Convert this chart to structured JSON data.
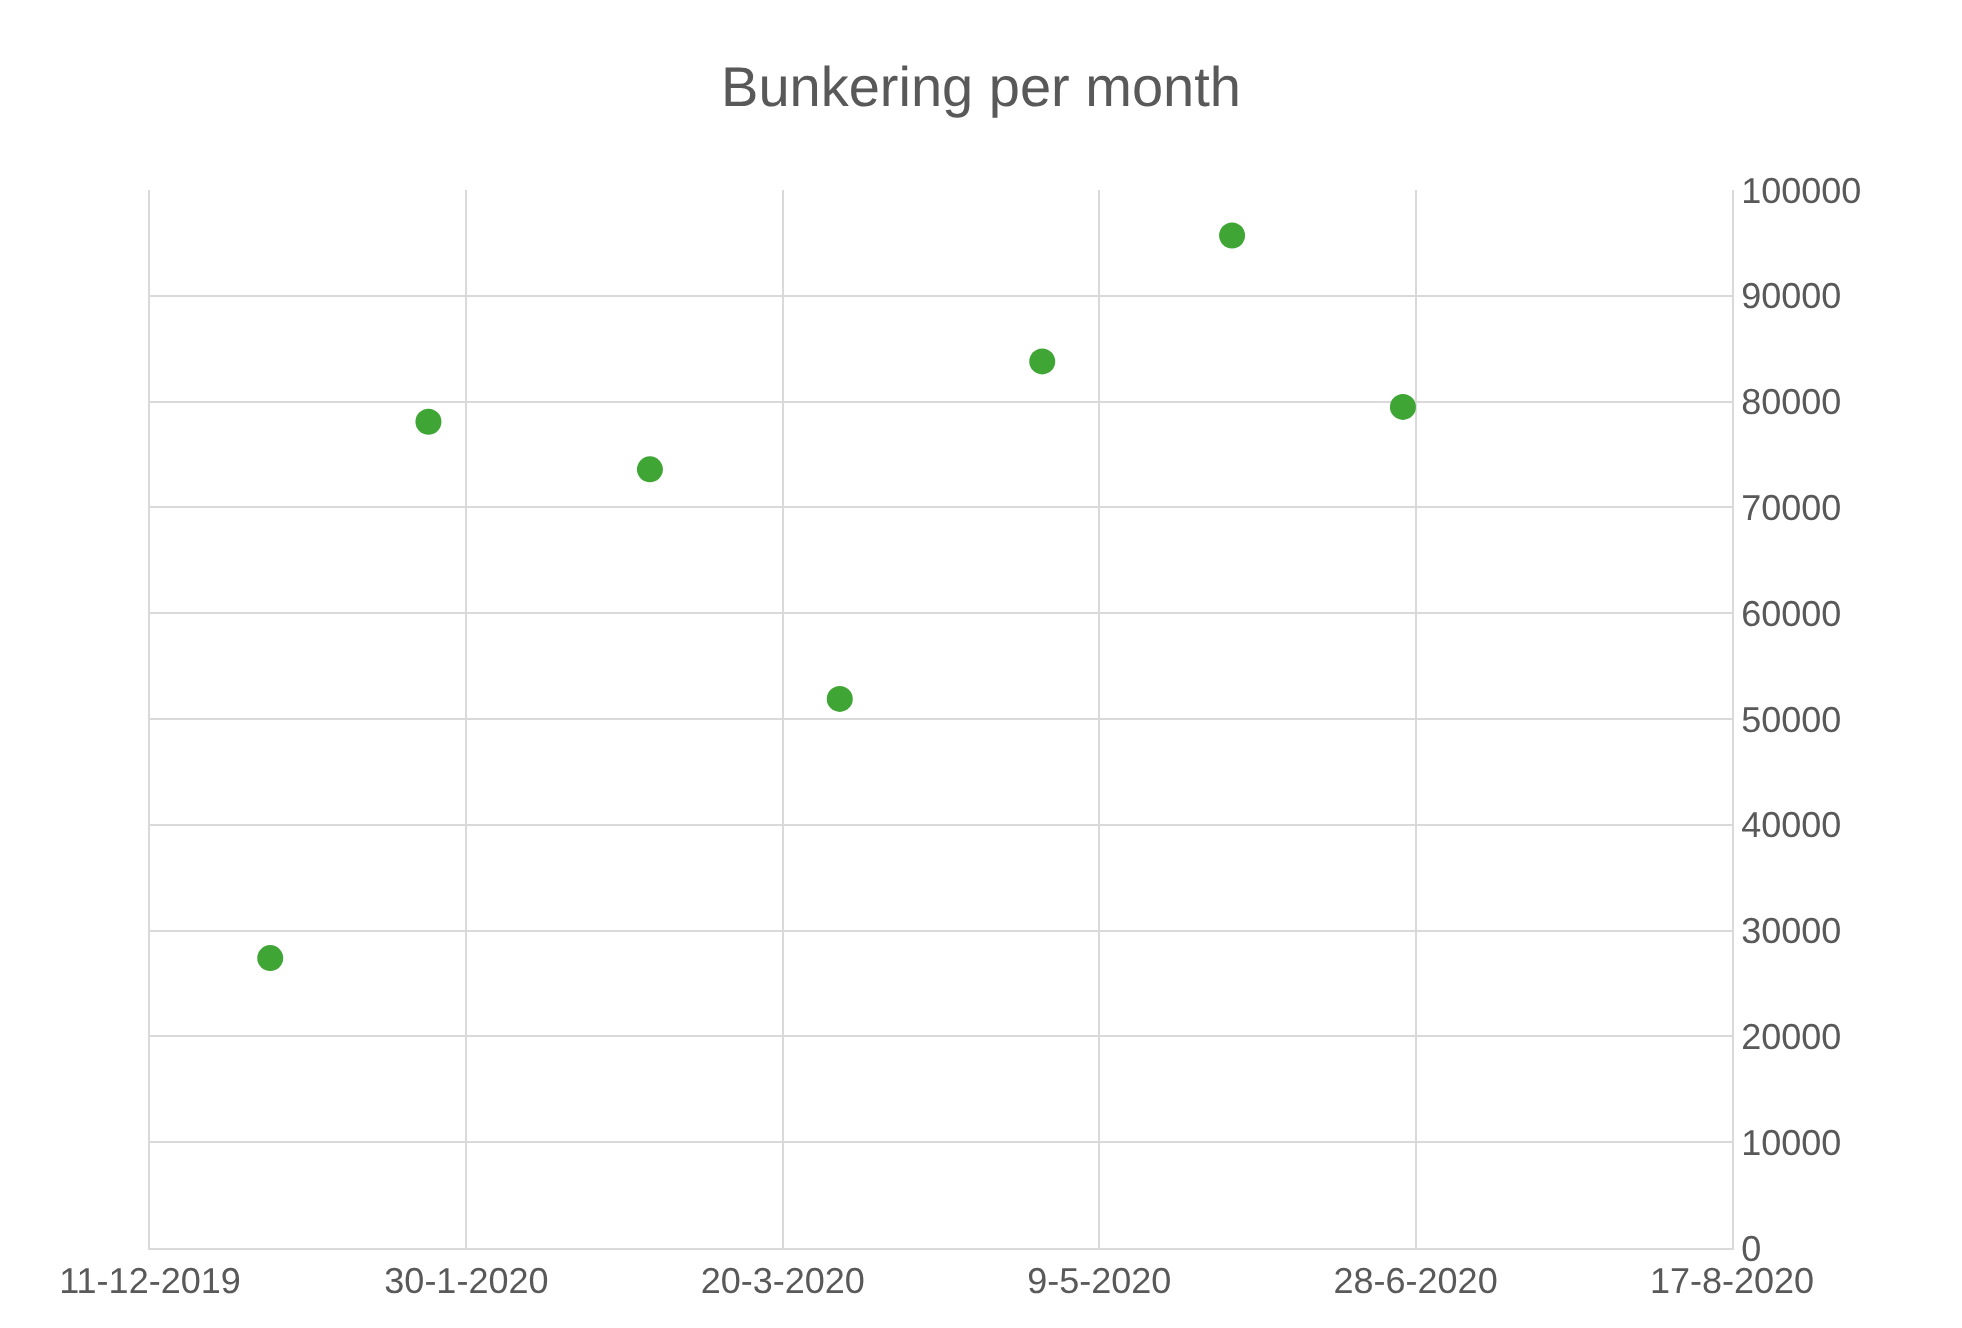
{
  "chart_data": {
    "type": "scatter",
    "title": "Bunkering per month",
    "x": [
      "2019-12-30",
      "2020-01-24",
      "2020-02-28",
      "2020-03-29",
      "2020-04-30",
      "2020-05-30",
      "2020-06-26"
    ],
    "series": [
      {
        "color": "#3fa535",
        "values": [
          27400,
          78100,
          73600,
          51900,
          83800,
          95700,
          79500
        ]
      }
    ],
    "xlim": [
      "2019-12-11",
      "2020-08-17"
    ],
    "xticks": [
      {
        "value": "2019-12-11",
        "label": "11-12-2019"
      },
      {
        "value": "2020-01-30",
        "label": "30-1-2020"
      },
      {
        "value": "2020-03-20",
        "label": "20-3-2020"
      },
      {
        "value": "2020-05-09",
        "label": "9-5-2020"
      },
      {
        "value": "2020-06-28",
        "label": "28-6-2020"
      },
      {
        "value": "2020-08-17",
        "label": "17-8-2020"
      }
    ],
    "ylim": [
      0,
      100000
    ],
    "yticks": [
      0,
      10000,
      20000,
      30000,
      40000,
      50000,
      60000,
      70000,
      80000,
      90000,
      100000
    ],
    "grid": true,
    "marker": "circle",
    "legend": false
  }
}
